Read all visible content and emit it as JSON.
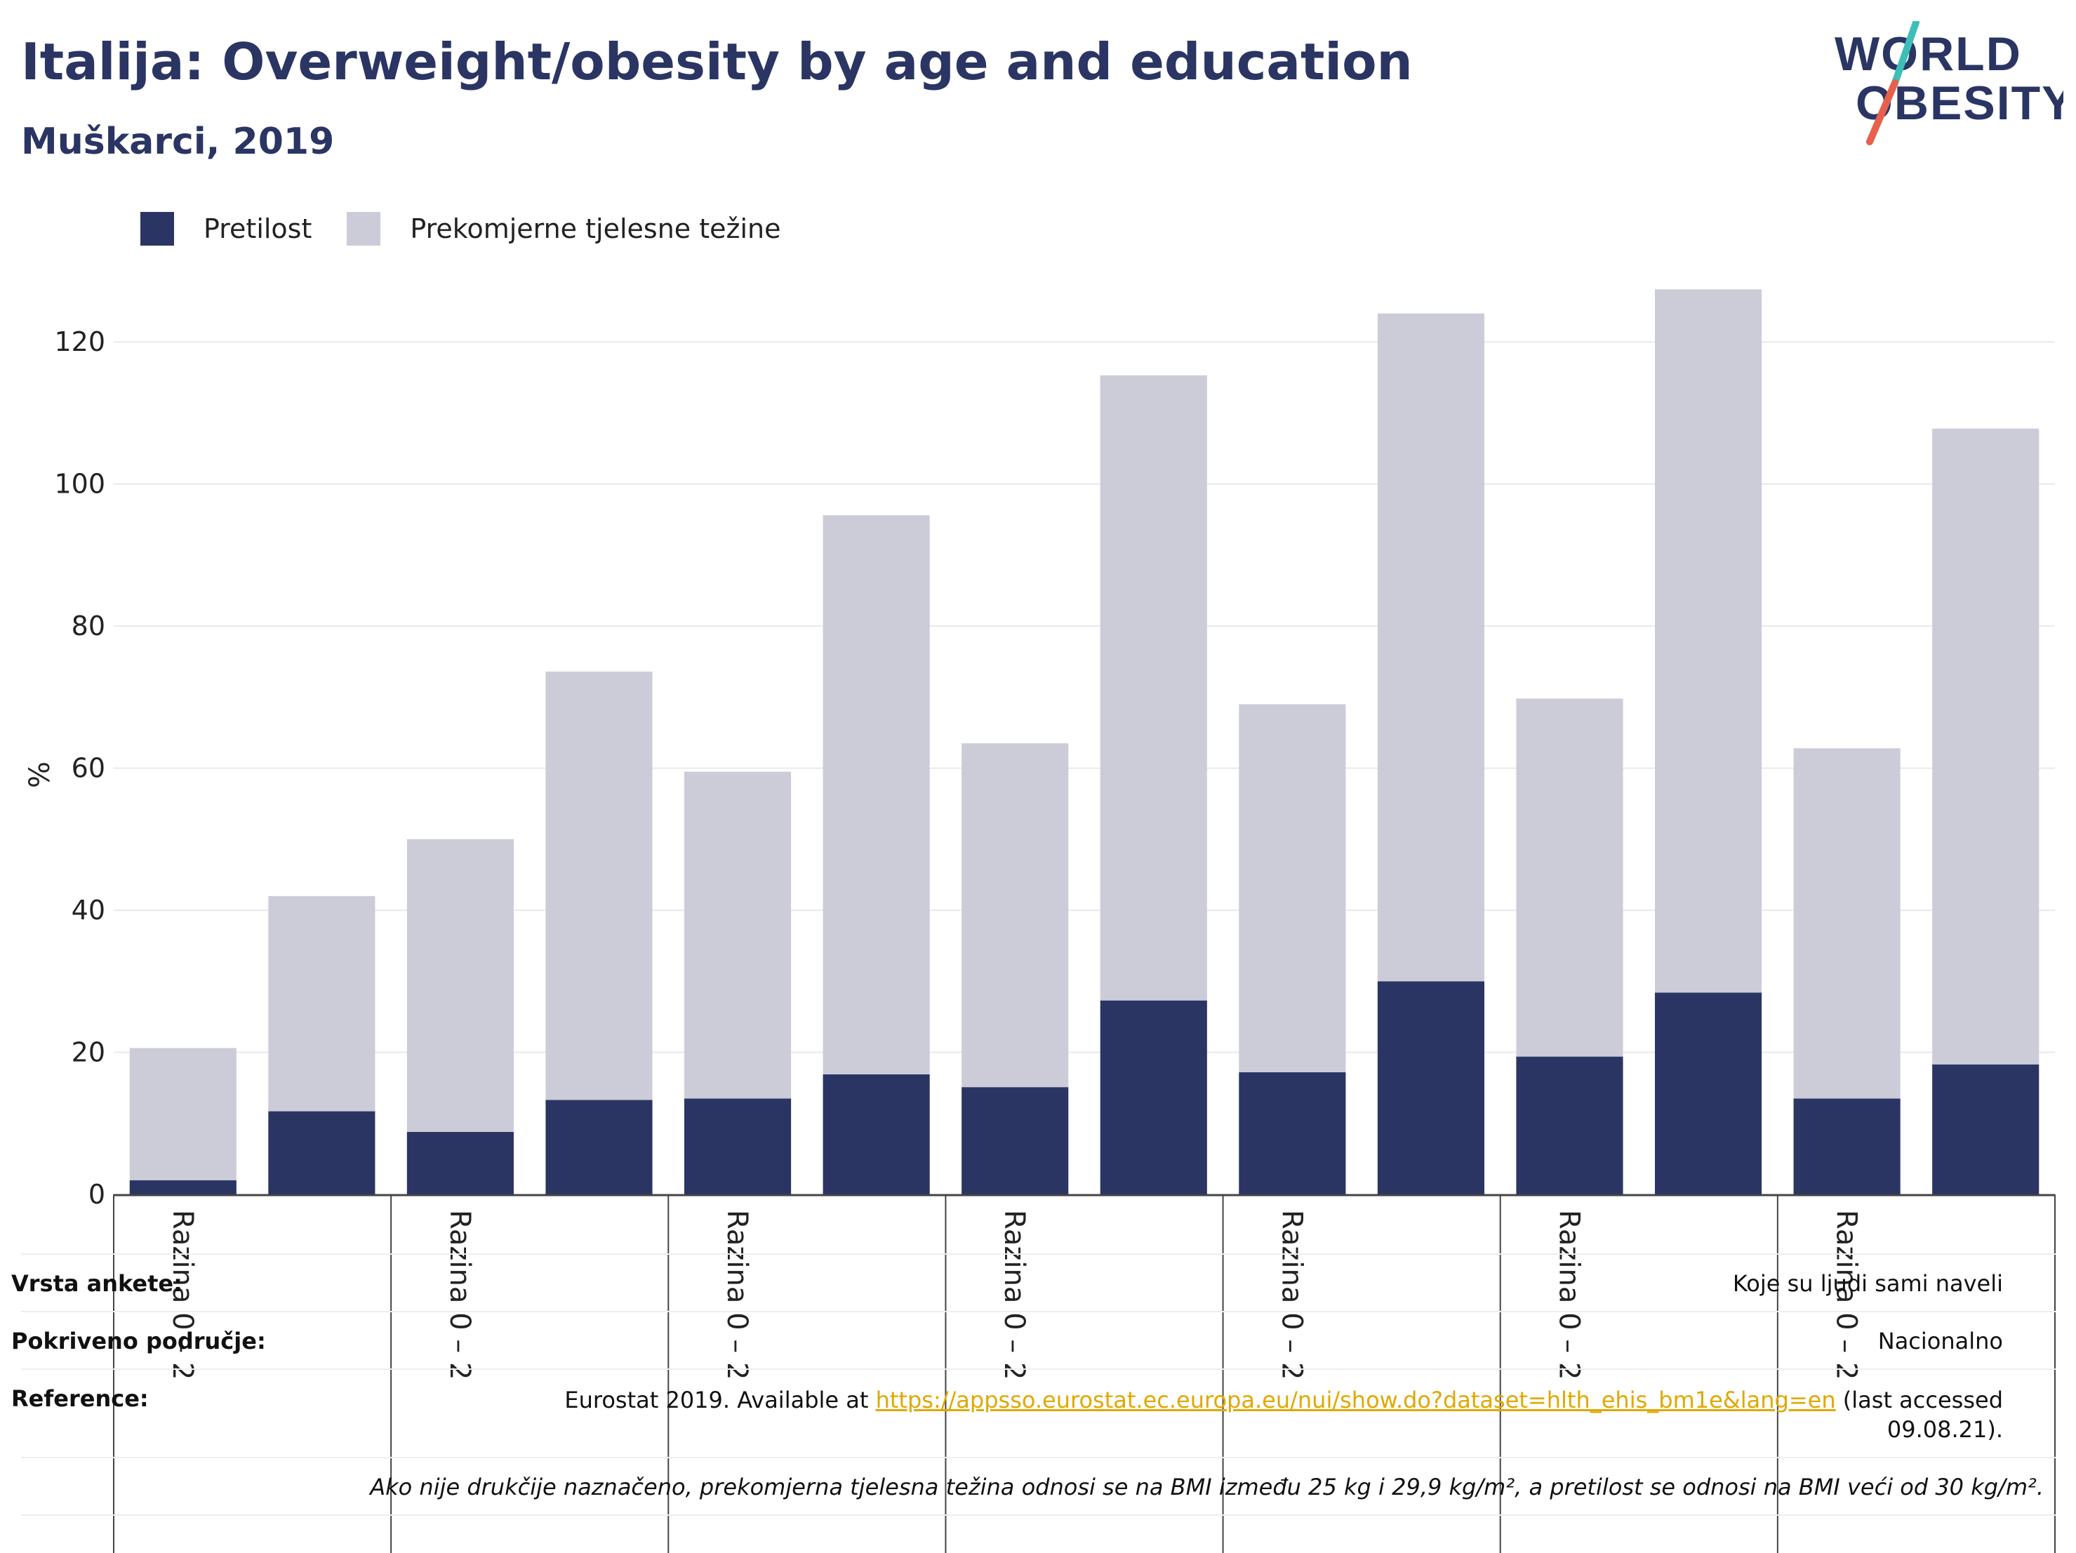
{
  "header": {
    "title": "Italija: Overweight/obesity by age and education",
    "subtitle": "Muškarci, 2019",
    "logo_line1": "WORLD",
    "logo_line2": "OBESITY"
  },
  "colors": {
    "obesity": "#2a3563",
    "overweight": "#cbccd8",
    "title": "#2a3563",
    "link": "#e0a800",
    "logo_teal": "#3dbfb8",
    "logo_red": "#e8604c"
  },
  "chart_data": {
    "type": "bar",
    "stacked": true,
    "ylabel": "%",
    "ylim": [
      0,
      130
    ],
    "yticks": [
      0,
      20,
      40,
      60,
      80,
      100,
      120
    ],
    "grid": true,
    "legend_position": "top-left",
    "category_labels": [
      "Razina 0 – 2",
      "",
      "Razina 0 – 2",
      "",
      "Razina 0 – 2",
      "",
      "Razina 0 – 2",
      "",
      "Razina 0 – 2",
      "",
      "Razina 0 – 2",
      "",
      "Razina 0 – 2",
      ""
    ],
    "series": [
      {
        "name": "Pretilost",
        "values": [
          2,
          11.7,
          8.8,
          13.3,
          13.5,
          16.9,
          15.1,
          27.3,
          17.2,
          30.0,
          19.4,
          28.4,
          13.5,
          18.3
        ]
      },
      {
        "name": "Prekomjerne tjelesne težine",
        "values": [
          18.6,
          30.3,
          41.2,
          60.3,
          46.0,
          78.7,
          48.4,
          88.0,
          51.8,
          94.0,
          50.4,
          99.0,
          49.3,
          89.5
        ]
      }
    ]
  },
  "info": {
    "survey_label": "Vrsta ankete:",
    "survey_value": "Koje su ljudi sami naveli",
    "coverage_label": "Pokriveno područje:",
    "coverage_value": "Nacionalno",
    "reference_label": "Reference:",
    "reference_prefix": "Eurostat 2019. Available at ",
    "reference_link": "https://appsso.eurostat.ec.europa.eu/nui/show.do?dataset=hlth_ehis_bm1e&lang=en",
    "reference_suffix": " (last accessed",
    "reference_date": "09.08.21).",
    "note": "Ako nije drukčije naznačeno, prekomjerna tjelesna težina odnosi se na BMI između 25 kg i 29,9 kg/m², a pretilost se odnosi na BMI veći od 30 kg/m²."
  }
}
